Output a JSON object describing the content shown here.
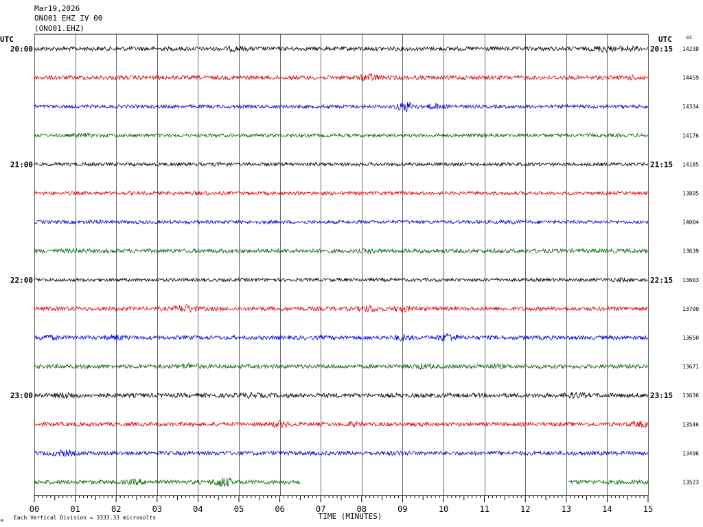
{
  "header": {
    "date": "Mar19,2026",
    "station": "ONO01 EHZ IV 00",
    "code": "(ONO01.EHZ)"
  },
  "labels": {
    "utc_left": "UTC",
    "utc_right": "UTC",
    "dc": "DC",
    "xlabel": "TIME (MINUTES)",
    "footer": "Each Vertical Division = 3333.33 microvolts",
    "footer_mark": "M"
  },
  "colors": {
    "cycle": [
      "#000000",
      "#e00000",
      "#0000d0",
      "#006400"
    ],
    "grid": "#000000"
  },
  "chart_data": {
    "type": "line",
    "chart_kind": "helicorder",
    "xlabel": "TIME (MINUTES)",
    "xlim": [
      0,
      15
    ],
    "x_tick_labels": [
      "00",
      "01",
      "02",
      "03",
      "04",
      "05",
      "06",
      "07",
      "08",
      "09",
      "10",
      "11",
      "12",
      "13",
      "14",
      "15"
    ],
    "grid": true,
    "hour_labels_left": [
      "20:00",
      "21:00",
      "22:00",
      "23:00"
    ],
    "hour_labels_right": [
      "20:15",
      "21:15",
      "22:15",
      "23:15"
    ],
    "rows": [
      {
        "dc": "14238",
        "color_index": 0,
        "amplitude": 3,
        "bursts": [
          [
            4.9,
            1.6
          ],
          [
            13.9,
            2.0
          ],
          [
            14.5,
            1.8
          ]
        ]
      },
      {
        "dc": "14459",
        "color_index": 1,
        "amplitude": 3,
        "bursts": [
          [
            8.2,
            2.2
          ],
          [
            14.7,
            1.5
          ]
        ]
      },
      {
        "dc": "14334",
        "color_index": 2,
        "amplitude": 2.5,
        "bursts": [
          [
            9.1,
            3.5
          ],
          [
            9.8,
            2.2
          ]
        ]
      },
      {
        "dc": "14176",
        "color_index": 3,
        "amplitude": 2.5,
        "bursts": [
          [
            1.2,
            1.4
          ],
          [
            11.0,
            1.4
          ]
        ]
      },
      {
        "dc": "14185",
        "color_index": 0,
        "amplitude": 2.5,
        "bursts": [
          [
            4.6,
            1.4
          ]
        ]
      },
      {
        "dc": "13895",
        "color_index": 1,
        "amplitude": 2.5,
        "bursts": [
          [
            4.1,
            1.4
          ]
        ]
      },
      {
        "dc": "14004",
        "color_index": 2,
        "amplitude": 2.5,
        "bursts": [
          [
            1.5,
            1.4
          ],
          [
            11.7,
            1.4
          ]
        ]
      },
      {
        "dc": "13639",
        "color_index": 3,
        "amplitude": 3,
        "bursts": [
          [
            1.0,
            1.3
          ],
          [
            8.2,
            1.3
          ]
        ]
      },
      {
        "dc": "13603",
        "color_index": 0,
        "amplitude": 2.5,
        "bursts": [
          [
            14.3,
            1.5
          ]
        ]
      },
      {
        "dc": "13700",
        "color_index": 1,
        "amplitude": 3,
        "bursts": [
          [
            3.7,
            2.5
          ],
          [
            8.2,
            2.0
          ],
          [
            9.0,
            1.8
          ]
        ]
      },
      {
        "dc": "13650",
        "color_index": 2,
        "amplitude": 3,
        "bursts": [
          [
            0.3,
            1.8
          ],
          [
            2.0,
            1.7
          ],
          [
            9.0,
            1.8
          ],
          [
            10.1,
            2.6
          ]
        ]
      },
      {
        "dc": "13671",
        "color_index": 3,
        "amplitude": 3,
        "bursts": [
          [
            3.8,
            1.8
          ],
          [
            9.5,
            1.6
          ],
          [
            11.2,
            1.6
          ]
        ]
      },
      {
        "dc": "13636",
        "color_index": 0,
        "amplitude": 3.2,
        "bursts": [
          [
            0.8,
            1.8
          ],
          [
            5.3,
            1.6
          ],
          [
            13.2,
            1.7
          ]
        ]
      },
      {
        "dc": "13546",
        "color_index": 1,
        "amplitude": 3,
        "bursts": [
          [
            6.0,
            2.0
          ],
          [
            7.8,
            1.5
          ],
          [
            14.8,
            1.8
          ]
        ]
      },
      {
        "dc": "13496",
        "color_index": 2,
        "amplitude": 3,
        "bursts": [
          [
            0.7,
            2.0
          ],
          [
            9.0,
            1.4
          ]
        ]
      },
      {
        "dc": "13523",
        "color_index": 3,
        "amplitude": 3,
        "bursts": [
          [
            2.5,
            1.7
          ],
          [
            4.6,
            3.0
          ]
        ],
        "segments": [
          [
            0,
            6.5
          ],
          [
            13.05,
            15
          ]
        ]
      }
    ]
  }
}
